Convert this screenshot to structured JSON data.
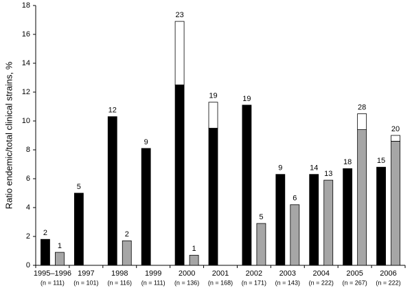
{
  "chart_data": {
    "type": "stacked_grouped_bar",
    "y_label": "Ratio endemic/total clinical strains, %",
    "categories": [
      "1995–1996",
      "1997",
      "1998",
      "1999",
      "2000",
      "2001",
      "2002",
      "2003",
      "2004",
      "2005",
      "2006"
    ],
    "category_notes": [
      "(n = 111)",
      "(n = 101)",
      "(n = 116)",
      "(n = 111)",
      "(n = 136)",
      "(n = 168)",
      "(n = 171)",
      "(n = 143)",
      "(n = 222)",
      "(n = 267)",
      "(n = 222)"
    ],
    "series": [
      {
        "stack": 0,
        "color": "#000000",
        "values": [
          1.8,
          5.0,
          10.3,
          8.1,
          12.5,
          9.5,
          11.1,
          6.3,
          6.3,
          6.7,
          6.8
        ]
      },
      {
        "stack": 0,
        "color": "#ffffff",
        "values": [
          null,
          null,
          null,
          null,
          4.4,
          1.8,
          null,
          null,
          null,
          null,
          null
        ]
      },
      {
        "stack": 1,
        "color": "#a6a6a6",
        "values": [
          0.9,
          null,
          1.7,
          null,
          0.7,
          null,
          2.9,
          4.2,
          5.9,
          9.4,
          8.6
        ]
      },
      {
        "stack": 1,
        "color": "#ffffff",
        "values": [
          null,
          null,
          null,
          null,
          null,
          null,
          null,
          null,
          null,
          1.1,
          0.4
        ]
      }
    ],
    "stack_labels": [
      [
        2,
        5,
        12,
        9,
        23,
        19,
        19,
        9,
        14,
        18,
        15
      ],
      [
        1,
        null,
        2,
        null,
        1,
        null,
        5,
        6,
        13,
        28,
        20
      ]
    ],
    "ylim": [
      0,
      18
    ],
    "yticks": [
      0,
      2,
      4,
      6,
      8,
      10,
      12,
      14,
      16,
      18
    ]
  }
}
